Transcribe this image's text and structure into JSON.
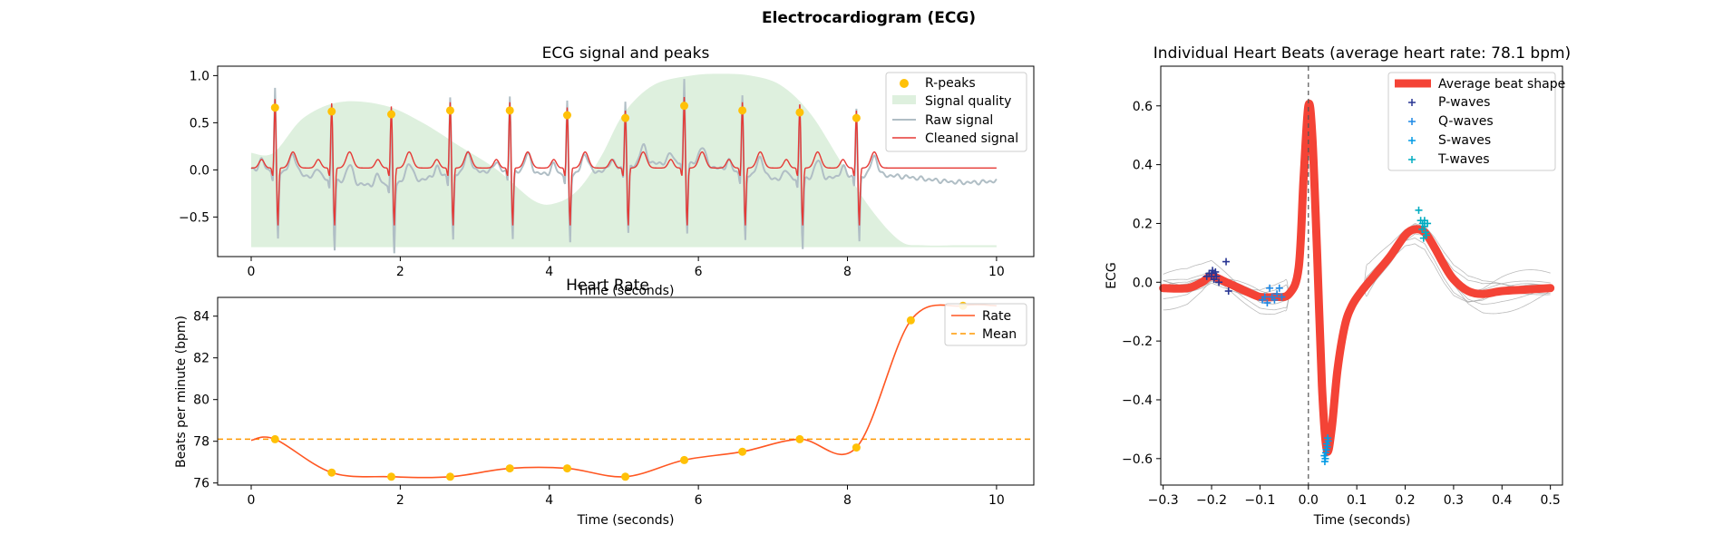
{
  "figure_title": "Electrocardiogram (ECG)",
  "chart_data": [
    {
      "type": "line",
      "title": "ECG signal and peaks",
      "xlabel": "Time (seconds)",
      "ylabel": "",
      "xlim": [
        -0.45,
        10.5
      ],
      "ylim": [
        -0.92,
        1.1
      ],
      "xticks": [
        0,
        2,
        4,
        6,
        8,
        10
      ],
      "yticks": [
        -0.5,
        0.0,
        0.5,
        1.0
      ],
      "xtick_labels": [
        "0",
        "2",
        "4",
        "6",
        "8",
        "10"
      ],
      "ytick_labels": [
        "−0.5",
        "0.0",
        "0.5",
        "1.0"
      ],
      "legend": [
        "R-peaks",
        "Signal quality",
        "Raw signal",
        "Cleaned signal"
      ],
      "legend_placement": "upper right",
      "r_peaks": {
        "x": [
          0.32,
          1.08,
          1.88,
          2.67,
          3.47,
          4.24,
          5.02,
          5.81,
          6.59,
          7.36,
          8.12
        ],
        "y": [
          0.66,
          0.62,
          0.59,
          0.63,
          0.63,
          0.58,
          0.55,
          0.68,
          0.63,
          0.61,
          0.55
        ]
      },
      "signal_quality": {
        "x": [
          0,
          0.3,
          0.7,
          1.2,
          1.8,
          2.3,
          2.8,
          3.3,
          3.8,
          4.1,
          4.4,
          4.7,
          5.0,
          5.4,
          5.9,
          6.3,
          6.7,
          7.1,
          7.5,
          7.9,
          8.3,
          8.7,
          9.0,
          9.5,
          10.0
        ],
        "y": [
          0.18,
          0.18,
          0.55,
          0.72,
          0.68,
          0.5,
          0.25,
          0.0,
          -0.33,
          -0.35,
          -0.2,
          0.15,
          0.6,
          0.9,
          1.0,
          1.02,
          1.0,
          0.9,
          0.6,
          0.1,
          -0.4,
          -0.75,
          -0.8,
          -0.8,
          -0.8
        ]
      },
      "colors": {
        "r_peaks": "#FFC107",
        "signal_quality": "#DEF0DE",
        "raw_signal": "#B0BEC5",
        "cleaned_signal": "#E53935"
      }
    },
    {
      "type": "line",
      "title": "Heart Rate",
      "xlabel": "Time (seconds)",
      "ylabel": "Beats per minute (bpm)",
      "xlim": [
        -0.45,
        10.5
      ],
      "ylim": [
        75.9,
        84.9
      ],
      "xticks": [
        0,
        2,
        4,
        6,
        8,
        10
      ],
      "yticks": [
        76,
        78,
        80,
        82,
        84
      ],
      "xtick_labels": [
        "0",
        "2",
        "4",
        "6",
        "8",
        "10"
      ],
      "ytick_labels": [
        "76",
        "78",
        "80",
        "82",
        "84"
      ],
      "legend": [
        "Rate",
        "Mean"
      ],
      "legend_placement": "upper right",
      "mean": 78.1,
      "peaks": {
        "x": [
          0.32,
          1.08,
          1.88,
          2.67,
          3.47,
          4.24,
          5.02,
          5.81,
          6.59,
          7.36,
          8.12,
          8.85,
          9.55
        ],
        "y": [
          78.1,
          76.5,
          76.3,
          76.3,
          76.7,
          76.7,
          76.3,
          77.1,
          77.5,
          78.1,
          77.7,
          83.8,
          84.5
        ]
      },
      "rate_start": {
        "x": 0,
        "y": 78.05
      },
      "rate_end": {
        "x": 10,
        "y": 84.5
      },
      "colors": {
        "rate": "#FF5722",
        "mean": "#FF9800",
        "peaks": "#FFC107"
      }
    },
    {
      "type": "line",
      "title": "Individual Heart Beats (average heart rate: 78.1 bpm)",
      "xlabel": "Time (seconds)",
      "ylabel": "ECG",
      "xlim": [
        -0.305,
        0.525
      ],
      "ylim": [
        -0.69,
        0.735
      ],
      "xticks": [
        -0.3,
        -0.2,
        -0.1,
        0.0,
        0.1,
        0.2,
        0.3,
        0.4,
        0.5
      ],
      "yticks": [
        -0.6,
        -0.4,
        -0.2,
        0.0,
        0.2,
        0.4,
        0.6
      ],
      "xtick_labels": [
        "−0.3",
        "−0.2",
        "−0.1",
        "0.0",
        "0.1",
        "0.2",
        "0.3",
        "0.4",
        "0.5"
      ],
      "ytick_labels": [
        "−0.6",
        "−0.4",
        "−0.2",
        "0.0",
        "0.2",
        "0.4",
        "0.6"
      ],
      "legend": [
        "Average beat shape",
        "P-waves",
        "Q-waves",
        "S-waves",
        "T-waves"
      ],
      "legend_placement": "upper right",
      "average_beat": {
        "x": [
          -0.3,
          -0.25,
          -0.22,
          -0.2,
          -0.17,
          -0.13,
          -0.1,
          -0.07,
          -0.04,
          -0.02,
          -0.01,
          0.0,
          0.008,
          0.018,
          0.028,
          0.038,
          0.048,
          0.06,
          0.075,
          0.09,
          0.11,
          0.14,
          0.17,
          0.2,
          0.22,
          0.24,
          0.26,
          0.28,
          0.3,
          0.33,
          0.36,
          0.4,
          0.45,
          0.5
        ],
        "y": [
          -0.02,
          -0.02,
          0.0,
          0.02,
          0.0,
          -0.03,
          -0.05,
          -0.05,
          -0.04,
          0.05,
          0.35,
          0.6,
          0.5,
          0.1,
          -0.35,
          -0.57,
          -0.5,
          -0.3,
          -0.15,
          -0.08,
          -0.03,
          0.03,
          0.09,
          0.16,
          0.18,
          0.17,
          0.12,
          0.06,
          0.01,
          -0.03,
          -0.04,
          -0.03,
          -0.025,
          -0.02
        ]
      },
      "p_waves": {
        "x": [
          -0.205,
          -0.2,
          -0.198,
          -0.192,
          -0.19,
          -0.185,
          -0.17,
          -0.165,
          -0.21,
          -0.195,
          -0.2
        ],
        "y": [
          0.03,
          0.02,
          0.04,
          0.035,
          0.02,
          0.0,
          0.07,
          -0.03,
          0.02,
          0.01,
          0.03
        ]
      },
      "q_waves": {
        "x": [
          -0.095,
          -0.09,
          -0.085,
          -0.08,
          -0.075,
          -0.07,
          -0.06,
          -0.055,
          -0.065
        ],
        "y": [
          -0.06,
          -0.05,
          -0.07,
          -0.02,
          -0.05,
          -0.06,
          -0.02,
          -0.05,
          -0.04
        ]
      },
      "s_waves": {
        "x": [
          0.033,
          0.035,
          0.037,
          0.038,
          0.04,
          0.036,
          0.039,
          0.034,
          0.041,
          0.037
        ],
        "y": [
          -0.59,
          -0.6,
          -0.57,
          -0.55,
          -0.53,
          -0.58,
          -0.56,
          -0.61,
          -0.54,
          -0.57
        ]
      },
      "t_waves": {
        "x": [
          0.228,
          0.232,
          0.236,
          0.24,
          0.244,
          0.238,
          0.242,
          0.235,
          0.246,
          0.24
        ],
        "y": [
          0.245,
          0.21,
          0.2,
          0.19,
          0.16,
          0.15,
          0.17,
          0.18,
          0.2,
          0.21
        ]
      },
      "colors": {
        "average_beat": "#F44336",
        "p_waves": "#283593",
        "q_waves": "#1E88E5",
        "s_waves": "#039BE5",
        "t_waves": "#00ACC1",
        "individual_beats": "#9E9E9E",
        "zero_line": "#555555"
      }
    }
  ]
}
